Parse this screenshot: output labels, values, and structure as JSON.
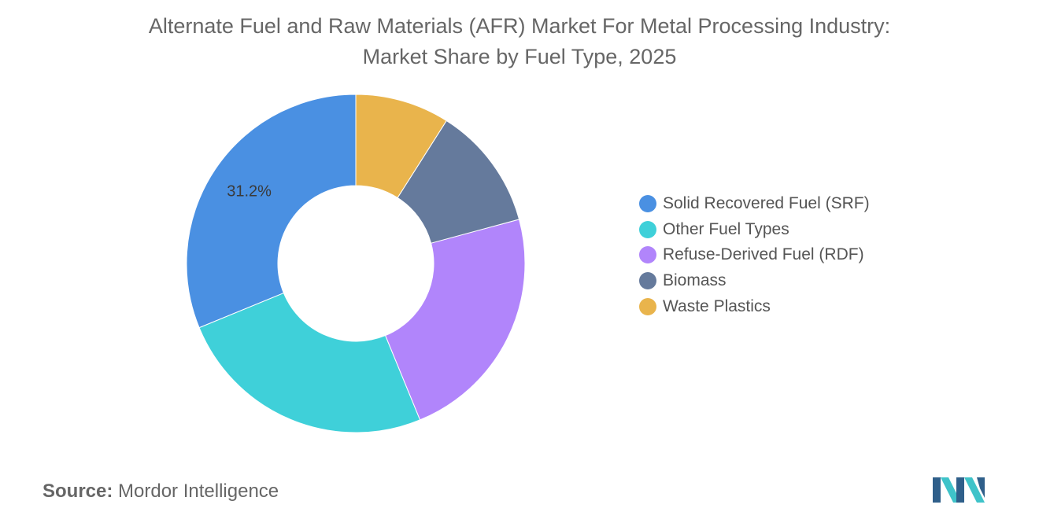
{
  "title": {
    "line1": "Alternate Fuel and Raw Materials (AFR) Market For Metal Processing Industry:",
    "line2": "Market Share by Fuel Type, 2025"
  },
  "chart_data": {
    "type": "pie",
    "style": "donut",
    "title": "Alternate Fuel and Raw Materials (AFR) Market For Metal Processing Industry: Market Share by Fuel Type, 2025",
    "unit": "%",
    "slices": [
      {
        "label": "Solid Recovered Fuel (SRF)",
        "value": 31.2,
        "color": "#4a90e2",
        "show_label": true
      },
      {
        "label": "Other Fuel Types",
        "value": 25.0,
        "color": "#3fd0d9"
      },
      {
        "label": "Refuse-Derived Fuel (RDF)",
        "value": 23.0,
        "color": "#b185fb"
      },
      {
        "label": "Biomass",
        "value": 11.8,
        "color": "#657a9c"
      },
      {
        "label": "Waste Plastics",
        "value": 9.0,
        "color": "#e9b44c"
      }
    ],
    "legend_position": "right"
  },
  "legend": {
    "items": [
      {
        "label": "Solid Recovered Fuel (SRF)",
        "color": "#4a90e2"
      },
      {
        "label": "Other Fuel Types",
        "color": "#3fd0d9"
      },
      {
        "label": "Refuse-Derived Fuel (RDF)",
        "color": "#b185fb"
      },
      {
        "label": "Biomass",
        "color": "#657a9c"
      },
      {
        "label": "Waste Plastics",
        "color": "#e9b44c"
      }
    ]
  },
  "source": {
    "label": "Source:",
    "text": "Mordor Intelligence"
  },
  "logo": {
    "icon": "mordor-intelligence-logo-icon",
    "colors": [
      "#2f5f8a",
      "#3fc3c9"
    ]
  }
}
